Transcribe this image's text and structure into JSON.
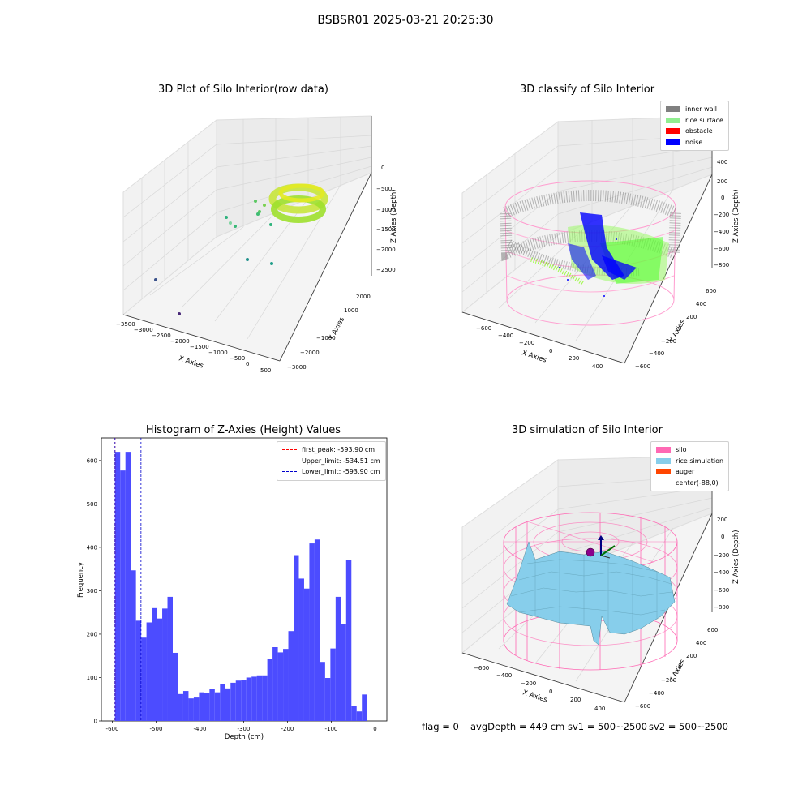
{
  "suptitle": "BSBSR01 2025-03-21 20:25:30",
  "footer": {
    "flag": "flag = 0",
    "avg": "avgDepth = 449 cm",
    "sv1": "sv1 = 500~2500",
    "sv2": "sv2 = 500~2500"
  },
  "colors": {
    "inner_wall": "#808080",
    "rice_surface": "#90ee90",
    "obstacle": "#ff0000",
    "noise": "#0000ff",
    "silo": "#ff69b4",
    "rice_simulation": "#87ceeb",
    "auger": "#ff4500",
    "hist_bar": "#4c4cff",
    "first_peak": "#ff0000",
    "limits": "#0000cc"
  },
  "plot1": {
    "title": "3D Plot of Silo Interior(row data)",
    "xlabel": "X Axies",
    "ylabel": "Y Axies",
    "zlabel": "Z Axies (Depth)",
    "xticks": [
      "−3500",
      "−3000",
      "−2500",
      "−2000",
      "−1500",
      "−1000",
      "−500",
      "0",
      "500"
    ],
    "yticks": [
      "2000",
      "1000",
      "−1000",
      "−2000",
      "−3000"
    ],
    "zticks": [
      "0",
      "−500",
      "−1000",
      "−1500",
      "−2000",
      "−2500"
    ]
  },
  "plot2": {
    "title": "3D classify of Silo Interior",
    "xlabel": "X Axies",
    "ylabel": "Y Axies",
    "zlabel": "Z Axies (Depth)",
    "xticks": [
      "−600",
      "−400",
      "−200",
      "0",
      "200",
      "400"
    ],
    "yticks": [
      "600",
      "400",
      "200",
      "0",
      "−200",
      "−400",
      "−600"
    ],
    "zticks": [
      "400",
      "200",
      "0",
      "−200",
      "−400",
      "−600",
      "−800"
    ],
    "legend": [
      "inner wall",
      "rice surface",
      "obstacle",
      "noise"
    ]
  },
  "plot4": {
    "title": "3D simulation of Silo Interior",
    "xlabel": "X Axies",
    "ylabel": "Y Axies",
    "zlabel": "Z Axies (Depth)",
    "xticks": [
      "−600",
      "−400",
      "−200",
      "0",
      "200",
      "400"
    ],
    "yticks": [
      "600",
      "400",
      "200",
      "0",
      "−200",
      "−400",
      "−600"
    ],
    "zticks": [
      "200",
      "0",
      "−200",
      "−400",
      "−600",
      "−800"
    ],
    "legend": [
      "silo",
      "rice simulation",
      "auger",
      "center(-88,0)"
    ]
  },
  "chart_data": {
    "type": "bar",
    "title": "Histogram of Z-Axies (Height) Values",
    "xlabel": "Depth (cm)",
    "ylabel": "Frequency",
    "xlim": [
      -625,
      27
    ],
    "ylim": [
      0,
      652
    ],
    "xticks": [
      -600,
      -500,
      -400,
      -300,
      -200,
      -100,
      0
    ],
    "yticks": [
      0,
      100,
      200,
      300,
      400,
      500,
      600
    ],
    "bin_start": -594,
    "bin_width": 12,
    "values": [
      620,
      577,
      620,
      347,
      231,
      192,
      227,
      260,
      236,
      259,
      286,
      157,
      62,
      69,
      52,
      54,
      66,
      64,
      74,
      66,
      85,
      75,
      88,
      93,
      95,
      100,
      102,
      105,
      105,
      143,
      170,
      158,
      166,
      207,
      382,
      328,
      305,
      409,
      418,
      136,
      99,
      167,
      286,
      224,
      370,
      35,
      22,
      61
    ],
    "vlines": [
      {
        "label": "first_peak: -593.90 cm",
        "x": -593.9
      },
      {
        "label": "Upper_limit: -534.51 cm",
        "x": -534.51
      },
      {
        "label": "Lower_limit: -593.90 cm",
        "x": -593.9
      }
    ]
  }
}
